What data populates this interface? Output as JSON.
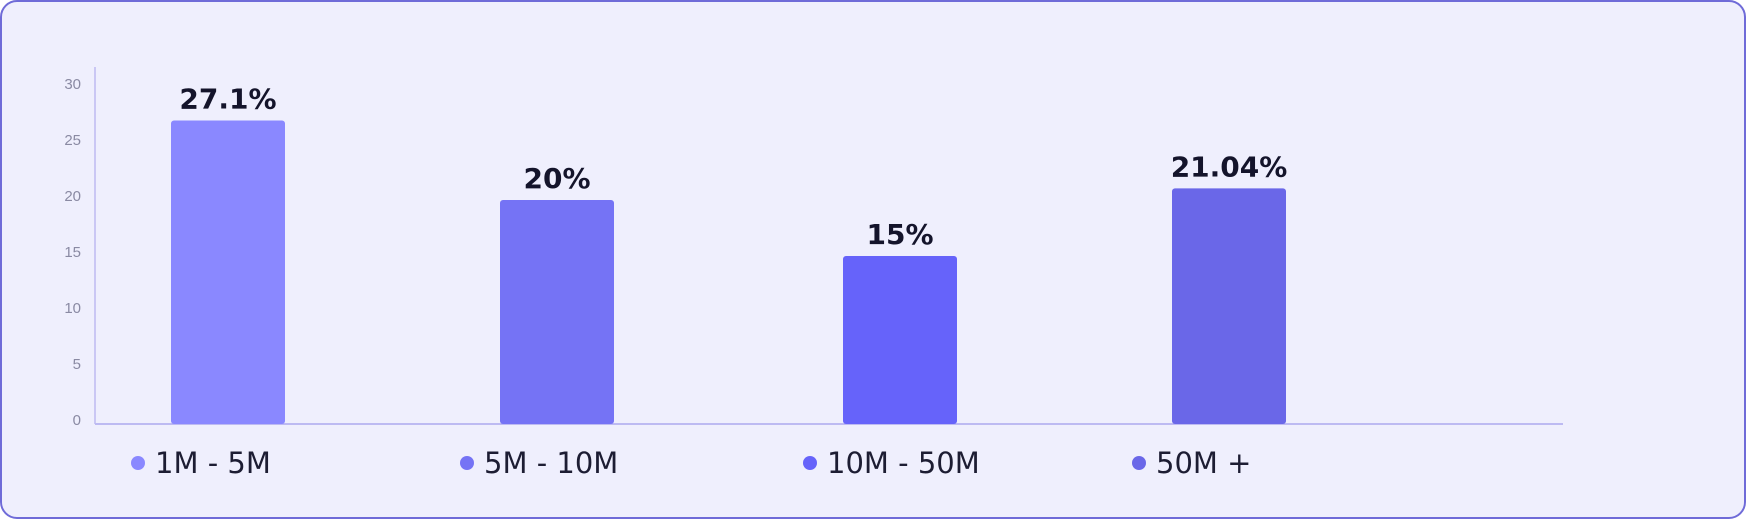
{
  "chart_data": {
    "type": "bar",
    "categories": [
      "1M - 5M",
      "5M - 10M",
      "10M - 50M",
      "50M +"
    ],
    "values": [
      27.1,
      20,
      15,
      21.04
    ],
    "value_labels": [
      "27.1%",
      "20%",
      "15%",
      "21.04%"
    ],
    "colors": [
      "#8a88ff",
      "#7573f5",
      "#6663fa",
      "#6a67e8"
    ],
    "ylim": [
      0,
      30
    ],
    "yticks": [
      0,
      5,
      10,
      15,
      20,
      25,
      30
    ],
    "grid": true
  }
}
